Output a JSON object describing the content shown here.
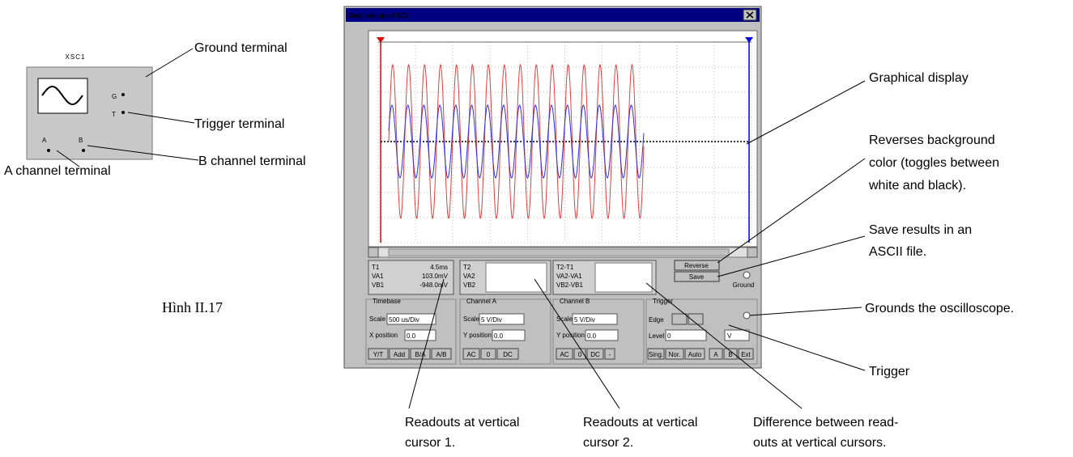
{
  "figure_label": "Hình II.17",
  "icon": {
    "name": "XSC1",
    "terminals": {
      "g": "G",
      "t": "T",
      "a": "A",
      "b": "B"
    }
  },
  "callouts": {
    "ground_terminal": "Ground terminal",
    "trigger_terminal": "Trigger terminal",
    "b_channel_terminal": "B channel terminal",
    "a_channel_terminal": "A channel terminal",
    "graphical_display": "Graphical display",
    "reverse": [
      "Reverses background",
      "color (toggles between",
      "white and black)."
    ],
    "save": [
      "Save results in an",
      "ASCII file."
    ],
    "ground": "Grounds the oscilloscope.",
    "trigger": "Trigger",
    "cursor1": [
      "Readouts at vertical",
      "cursor 1."
    ],
    "cursor2": [
      "Readouts at vertical",
      "cursor 2."
    ],
    "difference": [
      "Difference between read-",
      "outs at vertical cursors."
    ]
  },
  "window": {
    "title": "Oscilloscope-XSC1",
    "readout_t1": {
      "labels": [
        "T1",
        "VA1",
        "VB1"
      ],
      "values": [
        "4.5ms",
        "103.0mV",
        "-948.0mV"
      ]
    },
    "readout_t2": {
      "labels": [
        "T2",
        "VA2",
        "VB2"
      ]
    },
    "readout_diff": {
      "labels": [
        "T2-T1",
        "VA2-VA1",
        "VB2-VB1"
      ]
    },
    "buttons": {
      "reverse": "Reverse",
      "save": "Save"
    },
    "ground_label": "Ground",
    "timebase": {
      "title": "Timebase",
      "scale_label": "Scale",
      "scale": "500 us/Div",
      "position_label": "X position",
      "position": "0.0",
      "modes": [
        "Y/T",
        "Add",
        "B/A",
        "A/B"
      ]
    },
    "channel_a": {
      "title": "Channel A",
      "scale_label": "Scale",
      "scale": "5 V/Div",
      "position_label": "Y position",
      "position": "0.0",
      "coupling": [
        "AC",
        "0",
        "DC"
      ]
    },
    "channel_b": {
      "title": "Channel B",
      "scale_label": "Scale",
      "scale": "5 V/Div",
      "position_label": "Y position",
      "position": "0.0",
      "coupling": [
        "AC",
        "0",
        "DC",
        "-"
      ]
    },
    "trigger": {
      "title": "Trigger",
      "edge_label": "Edge",
      "level_label": "Level",
      "level": "0",
      "level_unit": "V",
      "modes": [
        "Sing.",
        "Nor.",
        "Auto"
      ],
      "sources": [
        "A",
        "B",
        "Ext"
      ]
    }
  }
}
